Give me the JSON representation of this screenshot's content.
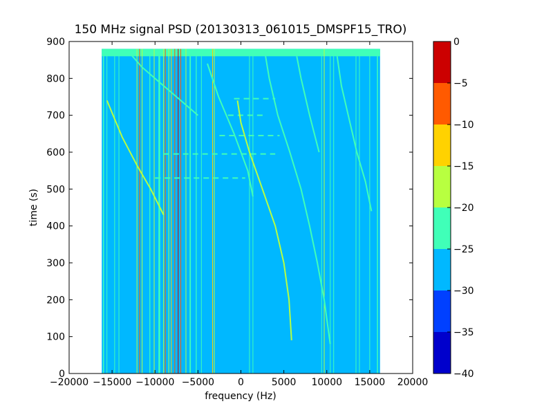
{
  "chart_data": {
    "type": "heatmap",
    "title": "150 MHz signal PSD (20130313_061015_DMSPF15_TRO)",
    "xlabel": "frequency (Hz)",
    "ylabel": "time (s)",
    "xlim": [
      -20000,
      20000
    ],
    "ylim": [
      0,
      900
    ],
    "xticks": [
      -20000,
      -15000,
      -10000,
      -5000,
      0,
      5000,
      10000,
      15000,
      20000
    ],
    "xtick_labels": [
      "−20000",
      "−15000",
      "−10000",
      "−5000",
      "0",
      "5000",
      "10000",
      "15000",
      "20000"
    ],
    "yticks": [
      0,
      100,
      200,
      300,
      400,
      500,
      600,
      700,
      800,
      900
    ],
    "ytick_labels": [
      "0",
      "100",
      "200",
      "300",
      "400",
      "500",
      "600",
      "700",
      "800",
      "900"
    ],
    "data_extent": {
      "freq": [
        -16200,
        16200
      ],
      "time": [
        0,
        880
      ]
    },
    "background_level": -27.5,
    "colorbar": {
      "levels": [
        -40,
        -35,
        -30,
        -25,
        -20,
        -15,
        -10,
        -5,
        0
      ],
      "tick_labels": [
        "−40",
        "−35",
        "−30",
        "−25",
        "−20",
        "−15",
        "−10",
        "−5",
        "0"
      ],
      "colors": [
        "#0000cc",
        "#0040ff",
        "#00b8ff",
        "#40ffb8",
        "#b8ff40",
        "#ffd200",
        "#ff5a00",
        "#cc0000"
      ]
    },
    "top_band": {
      "time": [
        860,
        880
      ],
      "level": -22.5
    },
    "vertical_lines": [
      {
        "freq": -16000,
        "level": -22.5,
        "width": 120
      },
      {
        "freq": -15600,
        "level": -22.5,
        "width": 80
      },
      {
        "freq": -14700,
        "level": -22.5,
        "width": 60
      },
      {
        "freq": -14200,
        "level": -22.5,
        "width": 80
      },
      {
        "freq": -12100,
        "level": -17.5,
        "width": 80
      },
      {
        "freq": -11800,
        "level": -7.5,
        "width": 60
      },
      {
        "freq": -11500,
        "level": -17.5,
        "width": 80
      },
      {
        "freq": -10600,
        "level": -22.5,
        "width": 100
      },
      {
        "freq": -10100,
        "level": -17.5,
        "width": 80
      },
      {
        "freq": -9500,
        "level": -22.5,
        "width": 200
      },
      {
        "freq": -9000,
        "level": -17.5,
        "width": 80
      },
      {
        "freq": -8800,
        "level": -7.5,
        "width": 60
      },
      {
        "freq": -8400,
        "level": -17.5,
        "width": 80
      },
      {
        "freq": -8100,
        "level": -12.5,
        "width": 80
      },
      {
        "freq": -7700,
        "level": -7.5,
        "width": 60
      },
      {
        "freq": -7300,
        "level": -2.5,
        "width": 80
      },
      {
        "freq": -7000,
        "level": -7.5,
        "width": 60
      },
      {
        "freq": -6400,
        "level": -17.5,
        "width": 80
      },
      {
        "freq": -5900,
        "level": -22.5,
        "width": 150
      },
      {
        "freq": -5200,
        "level": -22.5,
        "width": 100
      },
      {
        "freq": -4600,
        "level": -22.5,
        "width": 60
      },
      {
        "freq": -3300,
        "level": -12.5,
        "width": 60
      },
      {
        "freq": -3100,
        "level": -17.5,
        "width": 60
      },
      {
        "freq": 1000,
        "level": -22.5,
        "width": 80
      },
      {
        "freq": 1400,
        "level": -22.5,
        "width": 60
      },
      {
        "freq": 9400,
        "level": -22.5,
        "width": 80
      },
      {
        "freq": 9700,
        "level": -17.5,
        "width": 60
      },
      {
        "freq": 10400,
        "level": -22.5,
        "width": 80
      },
      {
        "freq": 10800,
        "level": -22.5,
        "width": 80
      },
      {
        "freq": 13400,
        "level": -22.5,
        "width": 80
      },
      {
        "freq": 13800,
        "level": -22.5,
        "width": 60
      },
      {
        "freq": 15000,
        "level": -22.5,
        "width": 60
      },
      {
        "freq": 15900,
        "level": -22.5,
        "width": 120
      }
    ],
    "curves": [
      {
        "level": -17.5,
        "points": [
          [
            5900,
            90
          ],
          [
            5600,
            200
          ],
          [
            5000,
            300
          ],
          [
            4000,
            400
          ],
          [
            2500,
            500
          ],
          [
            1000,
            600
          ],
          [
            0,
            680
          ],
          [
            -400,
            740
          ]
        ]
      },
      {
        "level": -22.5,
        "points": [
          [
            10400,
            80
          ],
          [
            9700,
            200
          ],
          [
            8900,
            300
          ],
          [
            8000,
            400
          ],
          [
            7000,
            500
          ],
          [
            5700,
            600
          ],
          [
            4300,
            700
          ],
          [
            3300,
            800
          ],
          [
            2800,
            870
          ]
        ]
      },
      {
        "level": -22.5,
        "points": [
          [
            1400,
            480
          ],
          [
            800,
            550
          ],
          [
            -800,
            650
          ],
          [
            -2600,
            750
          ],
          [
            -3900,
            840
          ]
        ]
      },
      {
        "level": -22.5,
        "points": [
          [
            -5000,
            700
          ],
          [
            -7000,
            740
          ],
          [
            -9500,
            790
          ],
          [
            -11500,
            830
          ],
          [
            -13000,
            870
          ]
        ]
      },
      {
        "level": -17.5,
        "points": [
          [
            -9000,
            430
          ],
          [
            -10500,
            500
          ],
          [
            -12000,
            560
          ],
          [
            -13800,
            640
          ],
          [
            -15600,
            740
          ]
        ]
      },
      {
        "level": -22.5,
        "points": [
          [
            15200,
            440
          ],
          [
            14500,
            520
          ],
          [
            13500,
            600
          ],
          [
            12500,
            700
          ],
          [
            11700,
            780
          ],
          [
            11200,
            860
          ]
        ]
      },
      {
        "level": -22.5,
        "points": [
          [
            9100,
            600
          ],
          [
            8000,
            700
          ],
          [
            7000,
            800
          ],
          [
            6500,
            860
          ]
        ]
      }
    ],
    "dashes": [
      {
        "time": 745,
        "freq_range": [
          -800,
          4000
        ],
        "level": -22.5
      },
      {
        "time": 700,
        "freq_range": [
          -1500,
          3000
        ],
        "level": -22.5
      },
      {
        "time": 645,
        "freq_range": [
          -2500,
          4500
        ],
        "level": -22.5
      },
      {
        "time": 595,
        "freq_range": [
          -9000,
          4000
        ],
        "level": -22.5
      },
      {
        "time": 530,
        "freq_range": [
          -10000,
          500
        ],
        "level": -22.5
      }
    ]
  }
}
